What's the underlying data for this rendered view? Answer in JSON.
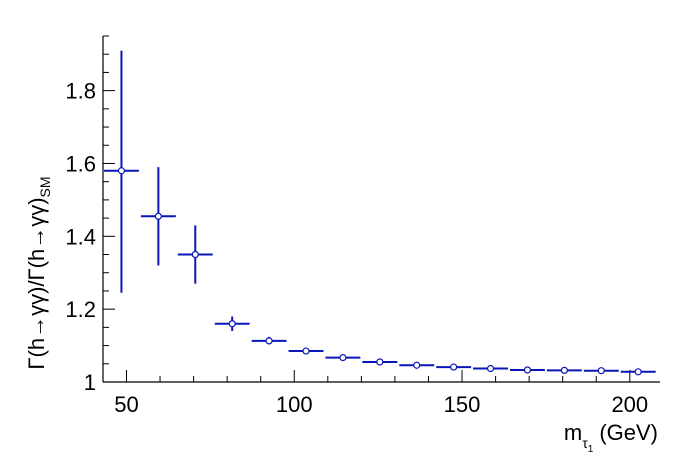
{
  "chart_data": {
    "type": "scatter",
    "title": "",
    "xlabel": "m (GeV)",
    "xlabel_parts": {
      "main": "m",
      "sub": "τ",
      "subsub": "1",
      "unit": "(GeV)"
    },
    "ylabel": "Γ(h→γγ)/Γ(h→γγ)SM",
    "ylabel_parts": {
      "main": "Γ(h→γγ)/Γ(h→γγ)",
      "sub": "SM"
    },
    "xlim": [
      43,
      209
    ],
    "ylim": [
      1.0,
      1.95
    ],
    "x_ticks": [
      50,
      100,
      150,
      200
    ],
    "x_tick_labels": [
      "50",
      "100",
      "150",
      "200"
    ],
    "y_ticks": [
      1.0,
      1.2,
      1.4,
      1.6,
      1.8
    ],
    "y_tick_labels": [
      "1",
      "1.2",
      "1.4",
      "1.6",
      "1.8"
    ],
    "grid": false,
    "color": "#0a17b8",
    "points": [
      {
        "x": 48.5,
        "x_err": 5.2,
        "y": 1.58,
        "y_lo": 1.245,
        "y_hi": 1.91
      },
      {
        "x": 59.5,
        "x_err": 5.2,
        "y": 1.455,
        "y_lo": 1.32,
        "y_hi": 1.59
      },
      {
        "x": 70.5,
        "x_err": 5.2,
        "y": 1.35,
        "y_lo": 1.27,
        "y_hi": 1.43
      },
      {
        "x": 81.5,
        "x_err": 5.2,
        "y": 1.16,
        "y_lo": 1.14,
        "y_hi": 1.18
      },
      {
        "x": 92.5,
        "x_err": 5.2,
        "y": 1.113,
        "y_lo": 1.103,
        "y_hi": 1.124
      },
      {
        "x": 103.5,
        "x_err": 5.2,
        "y": 1.085,
        "y_lo": 1.085,
        "y_hi": 1.085
      },
      {
        "x": 114.5,
        "x_err": 5.2,
        "y": 1.067,
        "y_lo": 1.067,
        "y_hi": 1.067
      },
      {
        "x": 125.5,
        "x_err": 5.2,
        "y": 1.055,
        "y_lo": 1.055,
        "y_hi": 1.055
      },
      {
        "x": 136.5,
        "x_err": 5.2,
        "y": 1.046,
        "y_lo": 1.046,
        "y_hi": 1.046
      },
      {
        "x": 147.5,
        "x_err": 5.2,
        "y": 1.041,
        "y_lo": 1.041,
        "y_hi": 1.041
      },
      {
        "x": 158.5,
        "x_err": 5.2,
        "y": 1.037,
        "y_lo": 1.037,
        "y_hi": 1.037
      },
      {
        "x": 169.5,
        "x_err": 5.2,
        "y": 1.033,
        "y_lo": 1.033,
        "y_hi": 1.033
      },
      {
        "x": 180.5,
        "x_err": 5.2,
        "y": 1.032,
        "y_lo": 1.032,
        "y_hi": 1.032
      },
      {
        "x": 191.5,
        "x_err": 5.2,
        "y": 1.031,
        "y_lo": 1.031,
        "y_hi": 1.031
      },
      {
        "x": 202.5,
        "x_err": 5.2,
        "y": 1.028,
        "y_lo": 1.028,
        "y_hi": 1.028
      }
    ]
  }
}
